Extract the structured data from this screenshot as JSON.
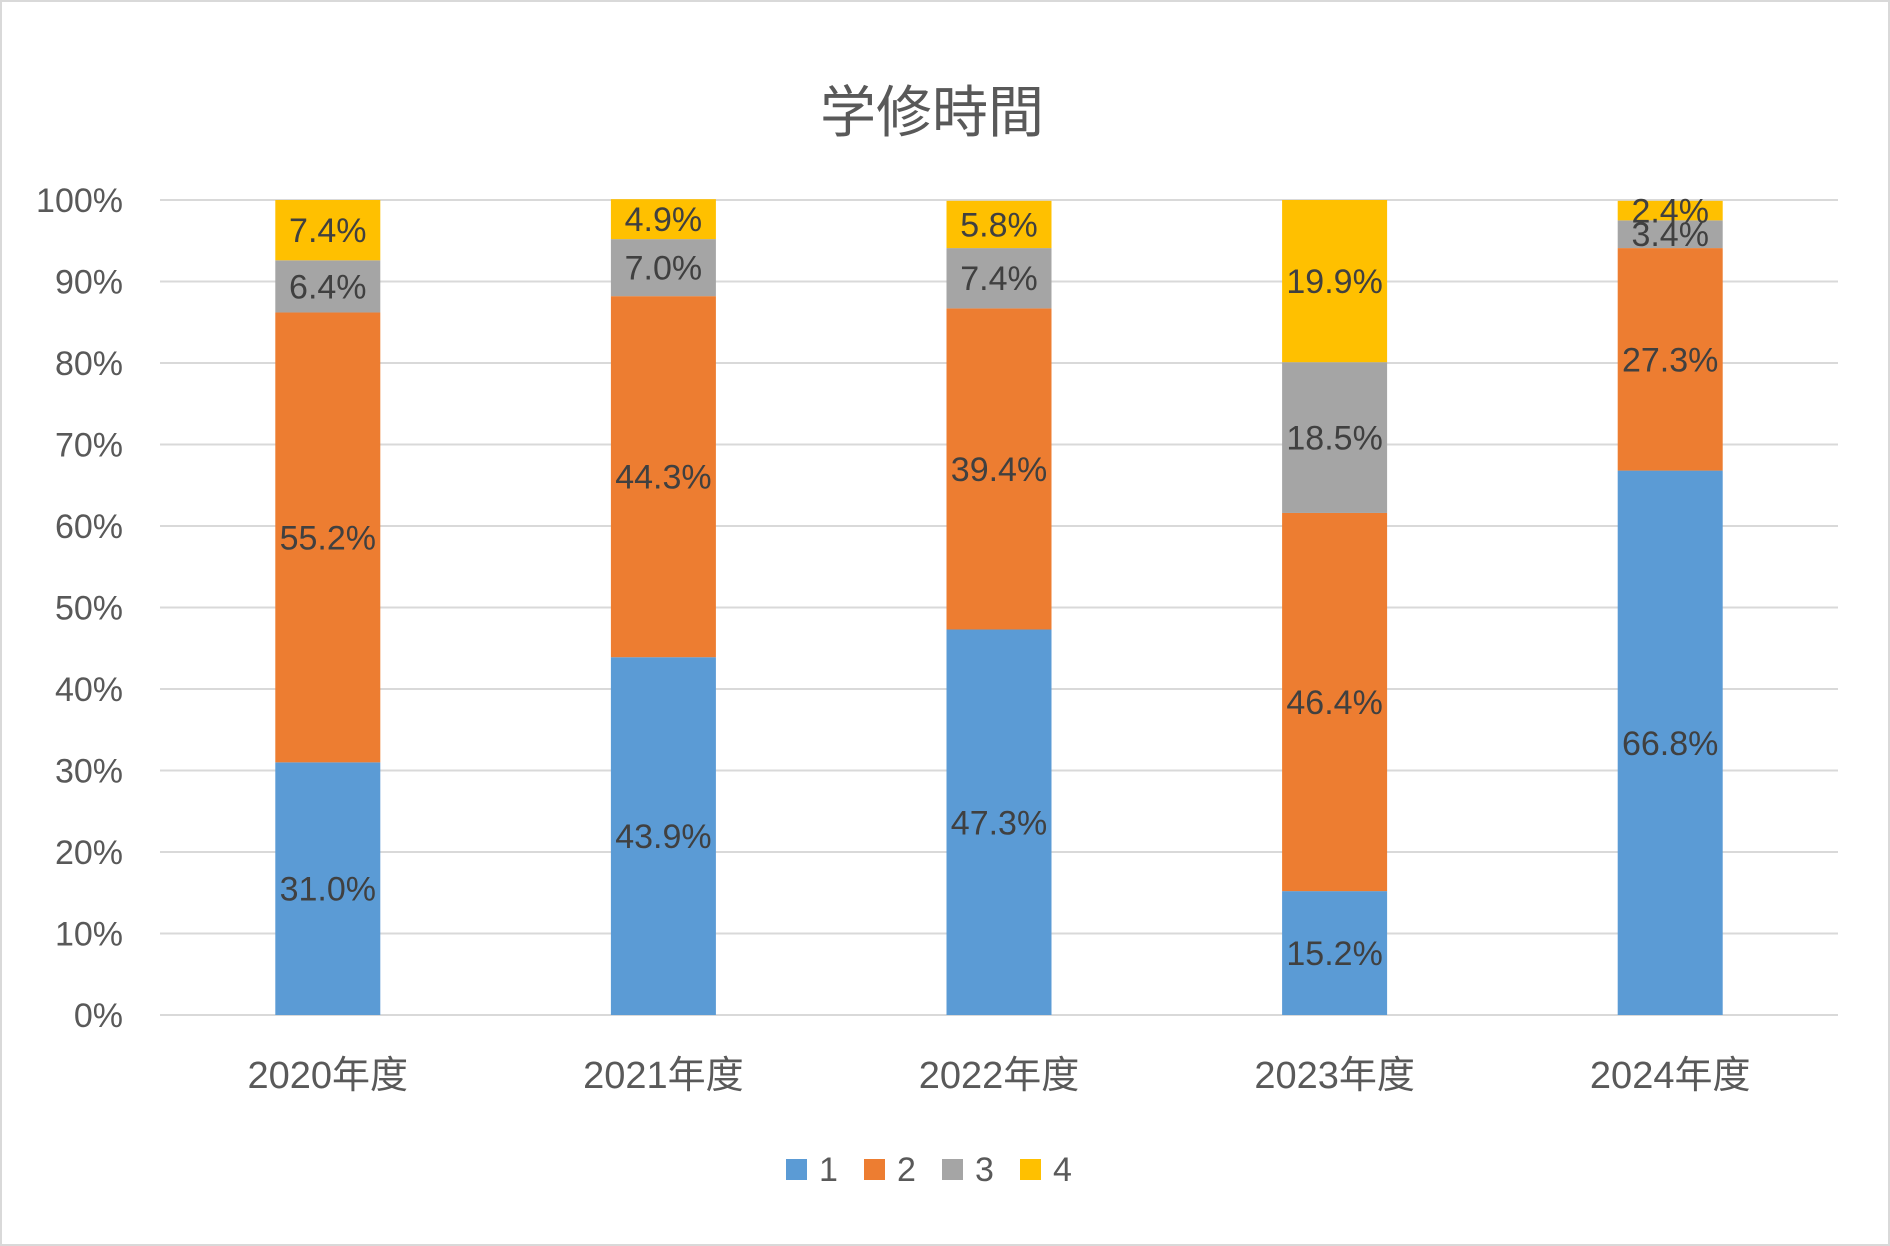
{
  "chart_data": {
    "type": "bar",
    "stacked": true,
    "title": "学修時間",
    "xlabel": "",
    "ylabel": "",
    "ylim": [
      0,
      100
    ],
    "yticks": [
      "0%",
      "10%",
      "20%",
      "30%",
      "40%",
      "50%",
      "60%",
      "70%",
      "80%",
      "90%",
      "100%"
    ],
    "categories": [
      "2020年度",
      "2021年度",
      "2022年度",
      "2023年度",
      "2024年度"
    ],
    "series": [
      {
        "name": "1",
        "color": "#5b9bd5",
        "values": [
          31.0,
          43.9,
          47.3,
          15.2,
          66.8
        ],
        "labels": [
          "31.0%",
          "43.9%",
          "47.3%",
          "15.2%",
          "66.8%"
        ]
      },
      {
        "name": "2",
        "color": "#ed7d31",
        "values": [
          55.2,
          44.3,
          39.4,
          46.4,
          27.3
        ],
        "labels": [
          "55.2%",
          "44.3%",
          "39.4%",
          "46.4%",
          "27.3%"
        ]
      },
      {
        "name": "3",
        "color": "#a5a5a5",
        "values": [
          6.4,
          7.0,
          7.4,
          18.5,
          3.4
        ],
        "labels": [
          "6.4%",
          "7.0%",
          "7.4%",
          "18.5%",
          "3.4%"
        ]
      },
      {
        "name": "4",
        "color": "#ffc000",
        "values": [
          7.4,
          4.9,
          5.8,
          19.9,
          2.4
        ],
        "labels": [
          "7.4%",
          "4.9%",
          "5.8%",
          "19.9%",
          "2.4%"
        ]
      }
    ],
    "grid": true,
    "legend": "bottom",
    "gridline_color": "#d9d9d9"
  }
}
